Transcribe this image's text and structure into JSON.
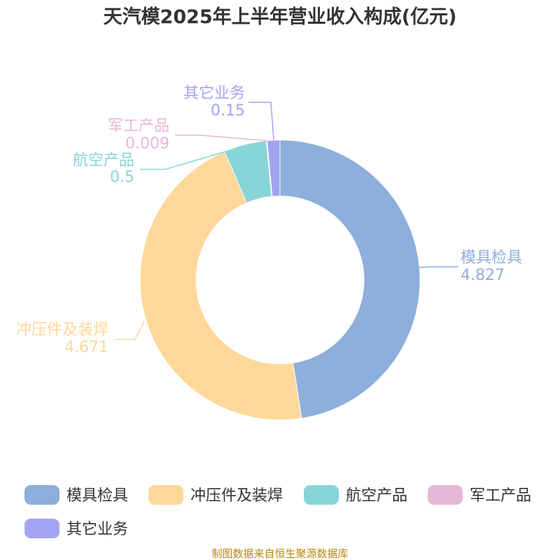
{
  "chart_data": {
    "type": "pie",
    "title": "天汽模2025年上半年营业收入构成(亿元)",
    "categories": [
      "模具检具",
      "冲压件及装焊",
      "航空产品",
      "军工产品",
      "其它业务"
    ],
    "values": [
      4.827,
      4.671,
      0.5,
      0.009,
      0.15
    ],
    "value_labels": [
      "4.827",
      "4.671",
      "0.5",
      "0.009",
      "0.15"
    ],
    "colors": [
      "#8eaedb",
      "#fed89b",
      "#88d5d8",
      "#e6b8d8",
      "#a3a3f3"
    ],
    "donut": true,
    "legend": "bottom",
    "source": "制图数据来自恒生聚源数据库"
  }
}
